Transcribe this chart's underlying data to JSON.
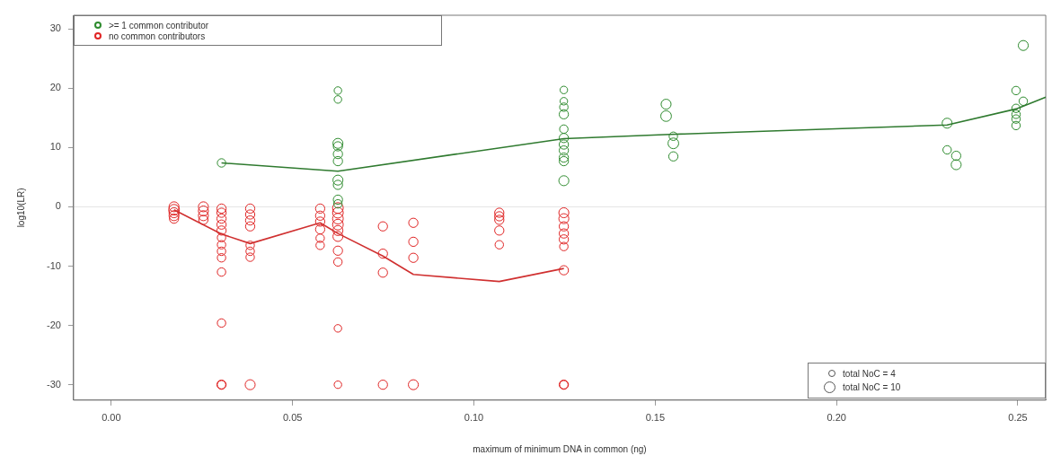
{
  "chart_data": {
    "type": "bubble",
    "xlabel": "maximum of minimum DNA in common (ng)",
    "ylabel": "log10(LR)",
    "xlim": [
      -0.0104,
      0.2577
    ],
    "ylim": [
      -32.6,
      32.3
    ],
    "xticks": [
      {
        "value": 0,
        "label": "0.00"
      },
      {
        "value": 0.05,
        "label": "0.05"
      },
      {
        "value": 0.1,
        "label": "0.10"
      },
      {
        "value": 0.15,
        "label": "0.15"
      },
      {
        "value": 0.2,
        "label": "0.20"
      },
      {
        "value": 0.25,
        "label": "0.25"
      }
    ],
    "yticks": [
      -30,
      -20,
      -10,
      0,
      10,
      20,
      30
    ],
    "grid": false,
    "legend": "top left",
    "size_legend": [
      {
        "value": 4,
        "label": "total NoC = 4"
      },
      {
        "value": 10,
        "label": "total NoC = 10"
      }
    ],
    "ref_lines": [
      {
        "axis": "y",
        "value": 0,
        "color": "#e4e4e4"
      }
    ],
    "series": [
      {
        "name": ">= 1 common contributor",
        "color": "#2e8b2e",
        "x": [
          0.0304,
          0.0625,
          0.0625,
          0.0625,
          0.0625,
          0.0625,
          0.0625,
          0.0625,
          0.0625,
          0.0625,
          0.0625,
          0.1248,
          0.1248,
          0.1248,
          0.1248,
          0.1248,
          0.1248,
          0.1248,
          0.1248,
          0.1248,
          0.1248,
          0.1248,
          0.153,
          0.153,
          0.155,
          0.155,
          0.155,
          0.2305,
          0.2305,
          0.233,
          0.233,
          0.2495,
          0.2495,
          0.2495,
          0.2495,
          0.2495,
          0.2515,
          0.2515
        ],
        "values": [
          7.4,
          19.6,
          18.1,
          10.7,
          10.2,
          8.9,
          7.7,
          4.5,
          3.7,
          1.2,
          0.5,
          19.7,
          17.8,
          16.8,
          15.6,
          13.1,
          11.6,
          10.5,
          9.5,
          8.3,
          7.7,
          4.4,
          17.3,
          15.3,
          11.9,
          10.7,
          8.5,
          14.1,
          9.6,
          8.6,
          7.1,
          19.6,
          16.6,
          15.6,
          14.8,
          13.7,
          27.2,
          17.8
        ],
        "sizes": [
          5,
          4,
          4,
          7,
          6,
          6,
          6,
          7,
          6,
          6,
          5,
          4,
          4,
          5,
          6,
          5,
          6,
          6,
          6,
          6,
          6,
          7,
          7,
          8,
          5,
          8,
          6,
          7,
          5,
          6,
          7,
          5,
          5,
          5,
          5,
          5,
          7,
          5
        ]
      },
      {
        "name": "no common contributors",
        "color": "#e02424",
        "x": [
          0.0173,
          0.0173,
          0.0173,
          0.0173,
          0.0173,
          0.0254,
          0.0254,
          0.0254,
          0.0254,
          0.0304,
          0.0304,
          0.0304,
          0.0304,
          0.0304,
          0.0304,
          0.0304,
          0.0304,
          0.0304,
          0.0304,
          0.0304,
          0.0304,
          0.0304,
          0.0383,
          0.0383,
          0.0383,
          0.0383,
          0.0383,
          0.0383,
          0.0383,
          0.0383,
          0.0576,
          0.0576,
          0.0576,
          0.0576,
          0.0576,
          0.0576,
          0.0625,
          0.0625,
          0.0625,
          0.0625,
          0.0625,
          0.0625,
          0.0625,
          0.0625,
          0.0625,
          0.0625,
          0.0749,
          0.0749,
          0.0749,
          0.0749,
          0.0833,
          0.0833,
          0.0833,
          0.0833,
          0.107,
          0.107,
          0.107,
          0.107,
          0.107,
          0.1248,
          0.1248,
          0.1248,
          0.1248,
          0.1248,
          0.1248,
          0.1248,
          0.1248,
          0.1248
        ],
        "values": [
          0,
          -0.5,
          -1,
          -1.5,
          -2,
          0,
          -0.7,
          -1.5,
          -2.2,
          -0.3,
          -1,
          -2,
          -3,
          -4,
          -5.2,
          -6.4,
          -7.5,
          -8.6,
          -11,
          -19.6,
          -30,
          -30,
          -0.3,
          -1.3,
          -2.3,
          -3.3,
          -6.5,
          -7.5,
          -8.5,
          -30,
          -0.3,
          -1.5,
          -2.5,
          -3.8,
          -5.3,
          -6.5,
          -0.2,
          -1,
          -2,
          -3,
          -4,
          -5,
          -7.4,
          -9.3,
          -20.5,
          -30,
          -3.3,
          -7.9,
          -11.1,
          -30,
          -2.7,
          -5.9,
          -8.6,
          -30,
          -1,
          -1.6,
          -2.2,
          -4,
          -6.4,
          -1,
          -2,
          -3.3,
          -4.5,
          -5.5,
          -6.7,
          -10.7,
          -30,
          -30
        ],
        "sizes": [
          7,
          8,
          7,
          7,
          6,
          7,
          7,
          7,
          6,
          6,
          6,
          6,
          6,
          6,
          5,
          5,
          5,
          5,
          5,
          5,
          6,
          5,
          6,
          6,
          6,
          6,
          5,
          5,
          5,
          7,
          6,
          6,
          6,
          6,
          5,
          5,
          8,
          8,
          8,
          8,
          7,
          7,
          6,
          5,
          4,
          4,
          6,
          6,
          6,
          6,
          6,
          6,
          6,
          7,
          6,
          6,
          6,
          6,
          5,
          7,
          7,
          6,
          6,
          6,
          5,
          6,
          6,
          5
        ]
      },
      {
        "type": "line",
        "color": "#2f7a2f",
        "x": [
          0.0304,
          0.0625,
          0.1248,
          0.154,
          0.2305,
          0.2495,
          0.2577
        ],
        "values": [
          7.4,
          6.0,
          11.5,
          12.2,
          13.8,
          16.5,
          18.5
        ]
      },
      {
        "type": "line",
        "color": "#d03030",
        "x": [
          0.0173,
          0.0304,
          0.0383,
          0.0576,
          0.0625,
          0.0749,
          0.0833,
          0.107,
          0.1248
        ],
        "values": [
          -0.5,
          -4.6,
          -6.2,
          -2.7,
          -4.5,
          -8.3,
          -11.4,
          -12.6,
          -10.4
        ]
      }
    ]
  }
}
